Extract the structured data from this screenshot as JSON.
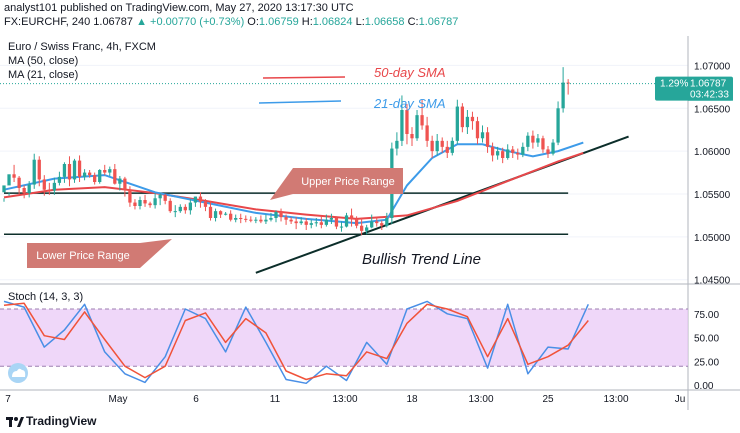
{
  "header": {
    "publisher": "analyst101 published on TradingView.com, May 27, 2020 13:17:30 UTC",
    "symbol": "FX:EURCHF, 240",
    "last": "1.06787",
    "change": "+0.00770 (+0.73%)",
    "ohlc": {
      "O": "1.06759",
      "H": "1.06824",
      "L": "1.06658",
      "C": "1.06787"
    }
  },
  "legend": {
    "title": "Euro / Swiss Franc, 4h, FXCM",
    "ma1": "MA (50, close)",
    "ma2": "MA (21, close)"
  },
  "price_tag": {
    "pct": "1.29%",
    "value": "1.06787",
    "countdown": "03:42:33"
  },
  "annotations": {
    "sma50": "50-day SMA",
    "sma21": "21-day SMA",
    "upper": "Upper Price Range",
    "lower": "Lower Price Range",
    "trend": "Bullish Trend Line"
  },
  "stoch_label": "Stoch (14, 3, 3)",
  "footer": {
    "brand": "TradingView"
  },
  "colors": {
    "bull": "#26a69a",
    "bear": "#ef5350",
    "ma50": "#e8474a",
    "ma21": "#3d9be9",
    "stoch_k": "#4a8fe6",
    "stoch_d": "#f0533a",
    "stoch_band": "#e8c6f7",
    "callout": "#d17a74"
  },
  "chart_data": [
    {
      "type": "candlestick",
      "title": "Euro / Swiss Franc, 4h, FXCM",
      "ylim": [
        1.0445,
        1.0725
      ],
      "y_ticks": [
        "1.07000",
        "1.06500",
        "1.06000",
        "1.05500",
        "1.05000",
        "1.04500"
      ],
      "x_ticks": [
        "7",
        "May",
        "6",
        "11",
        "13:00",
        "18",
        "13:00",
        "25",
        "13:00",
        "Ju"
      ],
      "x_range": [
        0,
        135
      ],
      "last_price": 1.06787,
      "horizontal_levels": [
        {
          "name": "Upper Price Range",
          "y": 1.0551,
          "x": [
            0,
            112
          ]
        },
        {
          "name": "Lower Price Range",
          "y": 1.0503,
          "x": [
            0,
            112
          ]
        }
      ],
      "trend_line": {
        "name": "Bullish Trend Line",
        "x": [
          50,
          124
        ],
        "y": [
          1.0458,
          1.0617
        ]
      },
      "series": [
        {
          "name": "MA (50, close)",
          "x": [
            0,
            10,
            20,
            30,
            40,
            50,
            60,
            70,
            80,
            90,
            100,
            110,
            115
          ],
          "y": [
            1.0546,
            1.0555,
            1.0558,
            1.0551,
            1.0542,
            1.0532,
            1.0526,
            1.0521,
            1.0525,
            1.0542,
            1.0565,
            1.0588,
            1.0598
          ]
        },
        {
          "name": "MA (21, close)",
          "x": [
            0,
            10,
            20,
            30,
            40,
            50,
            60,
            70,
            76,
            80,
            85,
            90,
            95,
            100,
            105,
            110,
            115
          ],
          "y": [
            1.0555,
            1.0568,
            1.0572,
            1.0552,
            1.054,
            1.0528,
            1.0521,
            1.0516,
            1.052,
            1.056,
            1.0592,
            1.0608,
            1.0608,
            1.06,
            1.0594,
            1.06,
            1.061
          ]
        }
      ],
      "candles": [
        [
          1.0552,
          1.056,
          1.0545,
          1.0541
        ],
        [
          1.056,
          1.0573,
          1.0552,
          1.0548
        ],
        [
          1.0573,
          1.0569,
          1.0584,
          1.0564
        ],
        [
          1.0569,
          1.0557,
          1.0571,
          1.055
        ],
        [
          1.0557,
          1.0551,
          1.056,
          1.0545
        ],
        [
          1.0551,
          1.0561,
          1.0565,
          1.0546
        ],
        [
          1.0561,
          1.059,
          1.0597,
          1.0556
        ],
        [
          1.059,
          1.0567,
          1.0594,
          1.0559
        ],
        [
          1.0567,
          1.0555,
          1.0572,
          1.0548
        ],
        [
          1.0555,
          1.0554,
          1.0563,
          1.0549
        ],
        [
          1.0554,
          1.0563,
          1.0569,
          1.0549
        ],
        [
          1.0563,
          1.057,
          1.0576,
          1.056
        ],
        [
          1.057,
          1.0585,
          1.0587,
          1.0563
        ],
        [
          1.0585,
          1.0567,
          1.0594,
          1.0559
        ],
        [
          1.0567,
          1.0589,
          1.0591,
          1.0563
        ],
        [
          1.0589,
          1.057,
          1.0595,
          1.0564
        ],
        [
          1.057,
          1.0575,
          1.0579,
          1.0566
        ],
        [
          1.0575,
          1.0572,
          1.0578,
          1.0569
        ],
        [
          1.0572,
          1.0564,
          1.0575,
          1.0561
        ],
        [
          1.0564,
          1.0578,
          1.0579,
          1.0562
        ],
        [
          1.0578,
          1.0575,
          1.0584,
          1.0572
        ],
        [
          1.0575,
          1.0579,
          1.0582,
          1.0571
        ],
        [
          1.0579,
          1.0562,
          1.0585,
          1.0561
        ],
        [
          1.0562,
          1.0568,
          1.0571,
          1.0554
        ],
        [
          1.0568,
          1.0555,
          1.057,
          1.0547
        ],
        [
          1.0555,
          1.054,
          1.0559,
          1.0535
        ],
        [
          1.054,
          1.0536,
          1.0544,
          1.0532
        ],
        [
          1.0536,
          1.0543,
          1.0547,
          1.0532
        ],
        [
          1.0543,
          1.0539,
          1.0549,
          1.0535
        ],
        [
          1.0539,
          1.0537,
          1.0541,
          1.0534
        ],
        [
          1.0537,
          1.0545,
          1.0551,
          1.0533
        ],
        [
          1.0545,
          1.0549,
          1.0551,
          1.0537
        ],
        [
          1.0549,
          1.0542,
          1.055,
          1.0538
        ],
        [
          1.0542,
          1.053,
          1.0545,
          1.0528
        ],
        [
          1.053,
          1.053,
          1.0537,
          1.0523
        ],
        [
          1.053,
          1.0535,
          1.0538,
          1.0528
        ],
        [
          1.0535,
          1.0531,
          1.0538,
          1.0527
        ],
        [
          1.0531,
          1.054,
          1.0544,
          1.0526
        ],
        [
          1.054,
          1.0547,
          1.0547,
          1.0535
        ],
        [
          1.0547,
          1.0541,
          1.0552,
          1.0534
        ],
        [
          1.0541,
          1.0535,
          1.0544,
          1.053
        ],
        [
          1.0535,
          1.0522,
          1.0542,
          1.0519
        ],
        [
          1.0522,
          1.053,
          1.0533,
          1.0518
        ],
        [
          1.053,
          1.0526,
          1.0531,
          1.0522
        ],
        [
          1.0526,
          1.0527,
          1.0529,
          1.0525
        ],
        [
          1.0527,
          1.052,
          1.0531,
          1.0518
        ],
        [
          1.052,
          1.0522,
          1.0526,
          1.0517
        ],
        [
          1.0522,
          1.0521,
          1.0527,
          1.0516
        ],
        [
          1.0521,
          1.052,
          1.0525,
          1.0517
        ],
        [
          1.052,
          1.0519,
          1.0524,
          1.0517
        ],
        [
          1.0519,
          1.052,
          1.0523,
          1.0516
        ],
        [
          1.052,
          1.0518,
          1.0525,
          1.0516
        ],
        [
          1.0518,
          1.052,
          1.0526,
          1.0515
        ],
        [
          1.052,
          1.0522,
          1.0528,
          1.0518
        ],
        [
          1.0522,
          1.0529,
          1.0531,
          1.0517
        ],
        [
          1.0529,
          1.0523,
          1.0533,
          1.0518
        ],
        [
          1.0523,
          1.052,
          1.0526,
          1.0514
        ],
        [
          1.052,
          1.0518,
          1.0523,
          1.0515
        ],
        [
          1.0518,
          1.0516,
          1.0523,
          1.0509
        ],
        [
          1.0516,
          1.0518,
          1.0523,
          1.0514
        ],
        [
          1.0518,
          1.0514,
          1.0522,
          1.0508
        ],
        [
          1.0514,
          1.0516,
          1.052,
          1.051
        ],
        [
          1.0516,
          1.0517,
          1.0522,
          1.0512
        ],
        [
          1.0517,
          1.0514,
          1.0524,
          1.051
        ],
        [
          1.0514,
          1.052,
          1.0526,
          1.0512
        ],
        [
          1.052,
          1.0522,
          1.0527,
          1.0515
        ],
        [
          1.0522,
          1.0512,
          1.0524,
          1.0509
        ],
        [
          1.0512,
          1.0512,
          1.0518,
          1.0506
        ],
        [
          1.0512,
          1.0525,
          1.0528,
          1.0511
        ],
        [
          1.0525,
          1.0521,
          1.0533,
          1.0512
        ],
        [
          1.0521,
          1.0513,
          1.0524,
          1.051
        ],
        [
          1.0513,
          1.0507,
          1.0522,
          1.0502
        ],
        [
          1.0507,
          1.0511,
          1.0514,
          1.0503
        ],
        [
          1.0511,
          1.0518,
          1.0526,
          1.051
        ],
        [
          1.0518,
          1.0516,
          1.0523,
          1.0512
        ],
        [
          1.0516,
          1.0513,
          1.0519,
          1.0508
        ],
        [
          1.0513,
          1.0522,
          1.0528,
          1.0511
        ],
        [
          1.0522,
          1.0603,
          1.061,
          1.0515
        ],
        [
          1.0603,
          1.0612,
          1.0622,
          1.0595
        ],
        [
          1.0612,
          1.0648,
          1.0665,
          1.0606
        ],
        [
          1.0648,
          1.062,
          1.0655,
          1.0608
        ],
        [
          1.062,
          1.0615,
          1.0628,
          1.0606
        ],
        [
          1.0615,
          1.0642,
          1.0648,
          1.0612
        ],
        [
          1.0642,
          1.063,
          1.066,
          1.0625
        ],
        [
          1.063,
          1.0612,
          1.064,
          1.0605
        ],
        [
          1.0612,
          1.06,
          1.0618,
          1.0592
        ],
        [
          1.06,
          1.0612,
          1.062,
          1.0595
        ],
        [
          1.0612,
          1.0605,
          1.0616,
          1.0598
        ],
        [
          1.0605,
          1.0598,
          1.0612,
          1.0592
        ],
        [
          1.0598,
          1.0612,
          1.0616,
          1.0595
        ],
        [
          1.0612,
          1.0652,
          1.066,
          1.0608
        ],
        [
          1.0652,
          1.0628,
          1.0656,
          1.0622
        ],
        [
          1.0628,
          1.064,
          1.0648,
          1.062
        ],
        [
          1.064,
          1.0635,
          1.0646,
          1.0625
        ],
        [
          1.0635,
          1.0615,
          1.064,
          1.0608
        ],
        [
          1.0615,
          1.0622,
          1.063,
          1.061
        ],
        [
          1.0622,
          1.0605,
          1.0628,
          1.0598
        ],
        [
          1.0605,
          1.0595,
          1.061,
          1.0588
        ],
        [
          1.0595,
          1.06,
          1.0605,
          1.059
        ],
        [
          1.06,
          1.0592,
          1.0604,
          1.0586
        ],
        [
          1.0592,
          1.0602,
          1.0608,
          1.059
        ],
        [
          1.0602,
          1.0598,
          1.0606,
          1.0592
        ],
        [
          1.0598,
          1.0596,
          1.0603,
          1.059
        ],
        [
          1.0596,
          1.0605,
          1.061,
          1.0593
        ],
        [
          1.0605,
          1.0618,
          1.0622,
          1.06
        ],
        [
          1.0618,
          1.061,
          1.0624,
          1.0603
        ],
        [
          1.061,
          1.0615,
          1.062,
          1.0605
        ],
        [
          1.0615,
          1.0602,
          1.0618,
          1.0598
        ],
        [
          1.0602,
          1.0597,
          1.0606,
          1.0592
        ],
        [
          1.0597,
          1.061,
          1.0614,
          1.0595
        ],
        [
          1.061,
          1.065,
          1.0658,
          1.0607
        ],
        [
          1.065,
          1.068,
          1.0698,
          1.0645
        ],
        [
          1.068,
          1.0679,
          1.0684,
          1.0666
        ]
      ]
    },
    {
      "type": "line",
      "title": "Stoch (14, 3, 3)",
      "ylim": [
        -5,
        100
      ],
      "y_ticks": [
        "75.00",
        "50.00",
        "25.00",
        "0.00"
      ],
      "bands": [
        20,
        80
      ],
      "x_range": [
        0,
        135
      ],
      "series": [
        {
          "name": "%K",
          "x": [
            0,
            4,
            8,
            12,
            16,
            20,
            24,
            28,
            32,
            36,
            40,
            44,
            48,
            52,
            56,
            60,
            64,
            68,
            72,
            76,
            80,
            84,
            88,
            92,
            96,
            100,
            104,
            108,
            112,
            116
          ],
          "y": [
            88,
            82,
            40,
            58,
            85,
            35,
            12,
            3,
            30,
            80,
            70,
            35,
            82,
            45,
            6,
            2,
            20,
            5,
            45,
            22,
            80,
            88,
            75,
            70,
            18,
            85,
            12,
            40,
            38,
            85
          ]
        },
        {
          "name": "%D",
          "x": [
            0,
            4,
            8,
            12,
            16,
            20,
            24,
            28,
            32,
            36,
            40,
            44,
            48,
            52,
            56,
            60,
            64,
            68,
            72,
            76,
            80,
            84,
            88,
            92,
            96,
            100,
            104,
            108,
            112,
            116
          ],
          "y": [
            84,
            86,
            52,
            48,
            77,
            48,
            20,
            8,
            20,
            68,
            76,
            45,
            70,
            55,
            15,
            6,
            12,
            10,
            35,
            28,
            65,
            85,
            80,
            72,
            30,
            70,
            22,
            30,
            42,
            68
          ]
        }
      ]
    }
  ]
}
